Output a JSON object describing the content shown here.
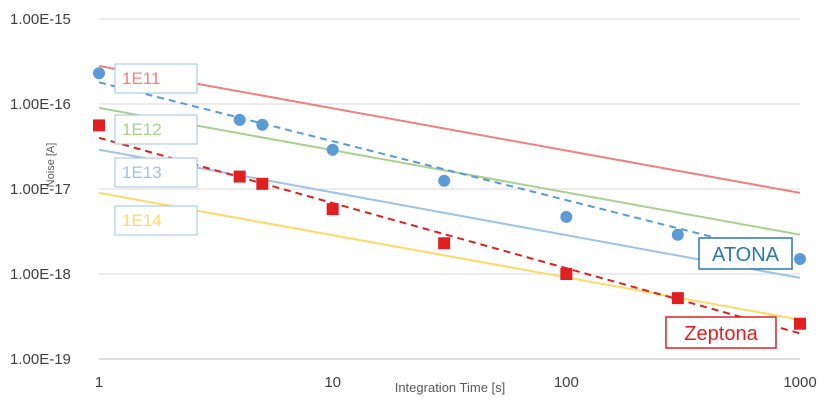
{
  "chart_data": {
    "type": "scatter",
    "x_scale": "log",
    "y_scale": "log",
    "xlabel": "Integration Time [s]",
    "ylabel": "Noise [A]",
    "xlim": [
      1,
      1000
    ],
    "ylim": [
      1e-19,
      1e-15
    ],
    "grid": "horizontal",
    "x_tick_labels": [
      "1",
      "10",
      "100",
      "1000"
    ],
    "y_tick_labels": [
      "1.00E-15",
      "1.00E-16",
      "1.00E-17",
      "1.00E-18",
      "1.00E-19"
    ],
    "reference_lines": [
      {
        "name": "1E11",
        "color": "#f08080",
        "points": [
          [
            1,
            2.8e-16
          ],
          [
            1000,
            9e-18
          ]
        ]
      },
      {
        "name": "1E12",
        "color": "#a9d18e",
        "points": [
          [
            1,
            9e-17
          ],
          [
            1000,
            2.9e-18
          ]
        ]
      },
      {
        "name": "1E13",
        "color": "#9dc3e6",
        "points": [
          [
            1,
            2.9e-17
          ],
          [
            1000,
            9e-19
          ]
        ]
      },
      {
        "name": "1E14",
        "color": "#ffd966",
        "points": [
          [
            1,
            9e-18
          ],
          [
            1000,
            2.9e-19
          ]
        ]
      }
    ],
    "series": [
      {
        "name": "ATONA",
        "color": "#5b9bd5",
        "marker": "circle",
        "points": [
          [
            1,
            2.3e-16
          ],
          [
            4,
            6.5e-17
          ],
          [
            5,
            5.7e-17
          ],
          [
            10,
            2.9e-17
          ],
          [
            30,
            1.25e-17
          ],
          [
            100,
            4.7e-18
          ],
          [
            300,
            2.9e-18
          ],
          [
            1000,
            1.5e-18
          ]
        ],
        "trend": [
          [
            1,
            1.8e-16
          ],
          [
            1000,
            1.5e-18
          ]
        ]
      },
      {
        "name": "Zeptona",
        "color": "#e02020",
        "marker": "square",
        "points": [
          [
            1,
            5.6e-17
          ],
          [
            4,
            1.4e-17
          ],
          [
            5,
            1.15e-17
          ],
          [
            10,
            5.8e-18
          ],
          [
            30,
            2.3e-18
          ],
          [
            100,
            1e-18
          ],
          [
            300,
            5.2e-19
          ],
          [
            1000,
            2.6e-19
          ]
        ],
        "trend": [
          [
            1,
            4e-17
          ],
          [
            1000,
            2e-19
          ]
        ]
      }
    ]
  }
}
